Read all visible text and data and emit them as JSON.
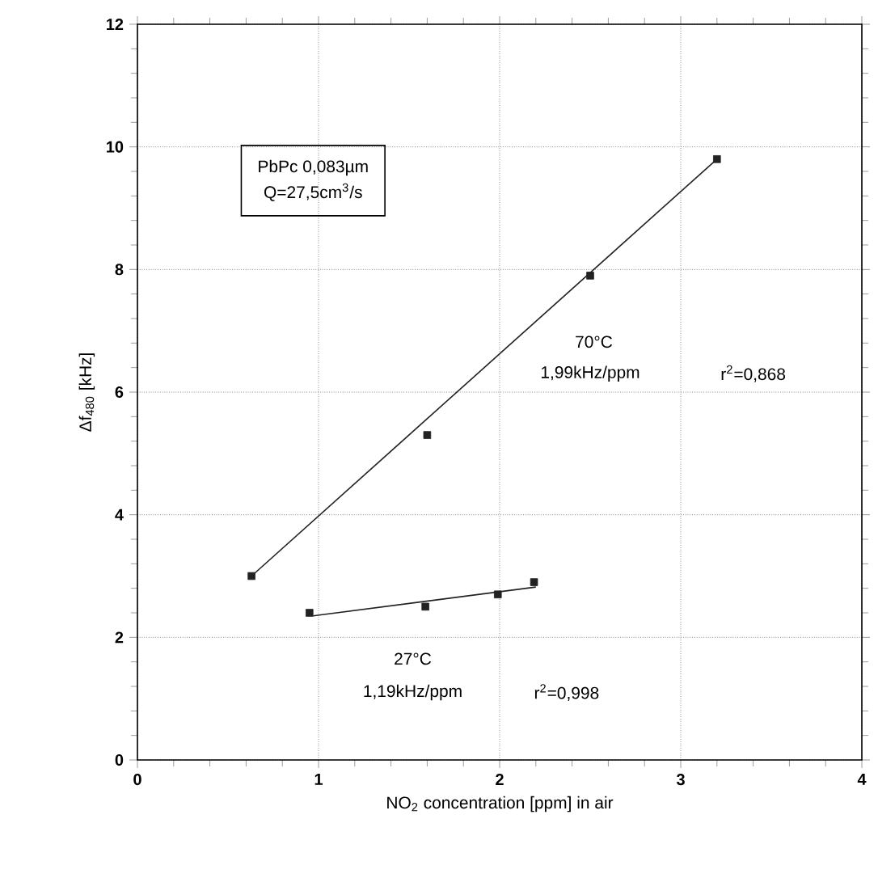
{
  "chart_data": {
    "type": "scatter",
    "xlabel": "NO$_{2}$ concentration [ppm] in air",
    "ylabel": "Δf$_{480}$ [kHz]",
    "xlim": [
      0,
      4
    ],
    "ylim": [
      0,
      12
    ],
    "xticks": [
      0,
      1,
      2,
      3,
      4
    ],
    "yticks": [
      0,
      2,
      4,
      6,
      8,
      10,
      12
    ],
    "grid": true,
    "marker": "square",
    "series": [
      {
        "color": "#222222",
        "x": [
          0.63,
          1.6,
          2.5,
          3.2
        ],
        "values": [
          3.0,
          5.3,
          7.9,
          9.8
        ]
      },
      {
        "type": "line",
        "color": "#222222",
        "marker": "none",
        "x": [
          0.63,
          3.2
        ],
        "values": [
          3.0,
          9.8
        ]
      },
      {
        "color": "#222222",
        "x": [
          0.95,
          1.59,
          1.99,
          2.19
        ],
        "values": [
          2.4,
          2.5,
          2.7,
          2.9
        ]
      },
      {
        "type": "line",
        "color": "#222222",
        "marker": "none",
        "x": [
          0.97,
          2.2
        ],
        "values": [
          2.35,
          2.82
        ]
      }
    ],
    "annotations": [
      "PbPc  0,083µm",
      "Q=27,5cm$^{3}$/s",
      "70°C",
      "1,99kHz/ppm",
      "r$^{2}$=0,868",
      "27°C",
      "1,19kHz/ppm",
      "r$^{2}$=0,998"
    ]
  }
}
